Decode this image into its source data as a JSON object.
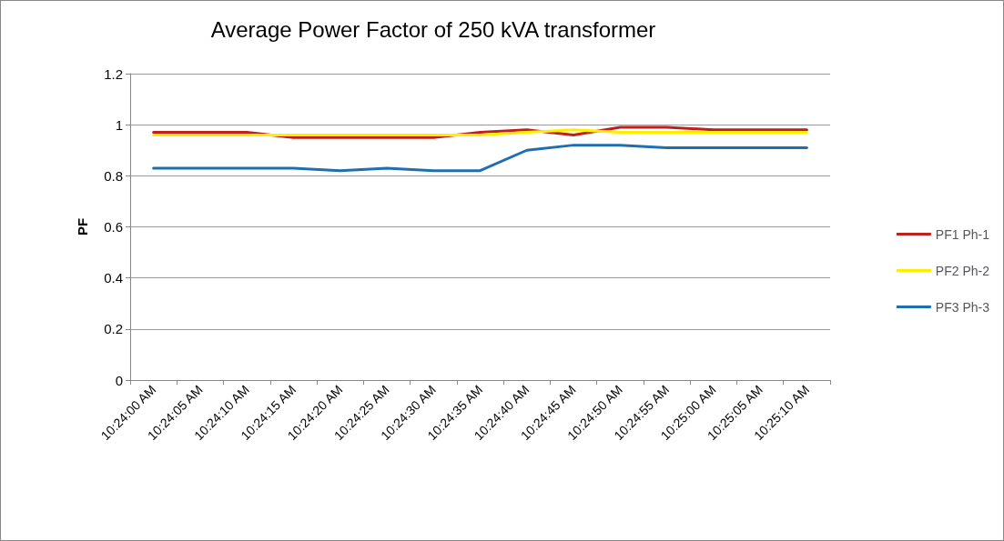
{
  "chart_data": {
    "type": "line",
    "title": "Average Power Factor of 250 kVA transformer",
    "ylabel": "PF",
    "categories": [
      "10:24:00 AM",
      "10:24:05 AM",
      "10:24:10 AM",
      "10:24:15 AM",
      "10:24:20 AM",
      "10:24:25 AM",
      "10:24:30 AM",
      "10:24:35 AM",
      "10:24:40 AM",
      "10:24:45 AM",
      "10:24:50 AM",
      "10:24:55 AM",
      "10:25:00 AM",
      "10:25:05 AM",
      "10:25:10 AM"
    ],
    "series": [
      {
        "name": "PF1 Ph-1",
        "color": "#c0201c",
        "values": [
          0.97,
          0.97,
          0.97,
          0.95,
          0.95,
          0.95,
          0.95,
          0.97,
          0.98,
          0.96,
          0.99,
          0.99,
          0.98,
          0.98,
          0.98
        ]
      },
      {
        "name": "PF2 Ph-2",
        "color": "#ffee00",
        "values": [
          0.96,
          0.96,
          0.96,
          0.96,
          0.96,
          0.96,
          0.96,
          0.96,
          0.97,
          0.98,
          0.97,
          0.97,
          0.97,
          0.97,
          0.97
        ]
      },
      {
        "name": "PF3 Ph-3",
        "color": "#1f6fb0",
        "values": [
          0.83,
          0.83,
          0.83,
          0.83,
          0.82,
          0.83,
          0.82,
          0.82,
          0.9,
          0.92,
          0.92,
          0.91,
          0.91,
          0.91,
          0.91
        ]
      }
    ],
    "ylim": [
      0,
      1.2
    ],
    "yticks": [
      0,
      0.2,
      0.4,
      0.6,
      0.8,
      1,
      1.2
    ],
    "grid": "y",
    "legend": "right",
    "marker": "none",
    "line_style": "solid"
  }
}
